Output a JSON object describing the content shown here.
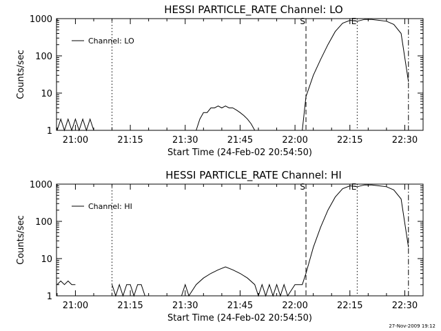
{
  "footer": {
    "timestamp": "27-Nov-2009 19:12"
  },
  "chart_data": [
    {
      "type": "line",
      "title": "HESSI PARTICLE_RATE Channel: LO",
      "xlabel": "Start Time (24-Feb-02 20:54:50)",
      "ylabel": "Counts/sec",
      "x_unit": "minutes of 24-Feb-02",
      "xlim": [
        "20:54:50",
        "22:35:00"
      ],
      "ylim": [
        1,
        1000
      ],
      "y_scale": "log",
      "x_ticks": [
        "21:00",
        "21:15",
        "21:30",
        "21:45",
        "22:00",
        "22:15",
        "22:30"
      ],
      "y_ticks": [
        "1",
        "10",
        "100",
        "1000"
      ],
      "legend": {
        "entries": [
          "Channel: LO"
        ],
        "placement": "top-left"
      },
      "markers": [
        {
          "time": "21:10",
          "style": "dotted",
          "label": ""
        },
        {
          "time": "22:03",
          "style": "dashed",
          "label": "S"
        },
        {
          "time": "22:17",
          "style": "dotted",
          "label": "E"
        },
        {
          "time": "22:31",
          "style": "dashdot",
          "label": ""
        }
      ],
      "series": [
        {
          "values": [
            [
              "20:55",
              1
            ],
            [
              "20:56",
              2
            ],
            [
              "20:57",
              1
            ],
            [
              "20:58",
              2
            ],
            [
              "20:59",
              1
            ],
            [
              "21:00",
              2
            ],
            [
              "21:01",
              1
            ],
            [
              "21:02",
              2
            ],
            [
              "21:03",
              1
            ],
            [
              "21:04",
              2
            ],
            [
              "21:05",
              1
            ],
            [
              "21:33",
              1
            ],
            [
              "21:34",
              2
            ],
            [
              "21:35",
              3
            ],
            [
              "21:36",
              3
            ],
            [
              "21:37",
              4
            ],
            [
              "21:38",
              4
            ],
            [
              "21:39",
              4.5
            ],
            [
              "21:40",
              4
            ],
            [
              "21:41",
              4.5
            ],
            [
              "21:42",
              4
            ],
            [
              "21:43",
              4
            ],
            [
              "21:44",
              3.5
            ],
            [
              "21:45",
              3
            ],
            [
              "21:46",
              2.5
            ],
            [
              "21:47",
              2
            ],
            [
              "21:48",
              1.5
            ],
            [
              "21:49",
              1
            ],
            [
              "22:02",
              1
            ],
            [
              "22:03",
              8
            ],
            [
              "22:05",
              30
            ],
            [
              "22:07",
              80
            ],
            [
              "22:09",
              200
            ],
            [
              "22:11",
              450
            ],
            [
              "22:13",
              750
            ],
            [
              "22:15",
              900
            ],
            [
              "22:17",
              850
            ],
            [
              "22:19",
              950
            ],
            [
              "22:21",
              950
            ],
            [
              "22:23",
              900
            ],
            [
              "22:25",
              850
            ],
            [
              "22:27",
              700
            ],
            [
              "22:29",
              400
            ],
            [
              "22:31",
              20
            ]
          ]
        }
      ]
    },
    {
      "type": "line",
      "title": "HESSI PARTICLE_RATE Channel: HI",
      "xlabel": "Start Time (24-Feb-02 20:54:50)",
      "ylabel": "Counts/sec",
      "x_unit": "minutes of 24-Feb-02",
      "xlim": [
        "20:54:50",
        "22:35:00"
      ],
      "ylim": [
        1,
        1000
      ],
      "y_scale": "log",
      "x_ticks": [
        "21:00",
        "21:15",
        "21:30",
        "21:45",
        "22:00",
        "22:15",
        "22:30"
      ],
      "y_ticks": [
        "1",
        "10",
        "100",
        "1000"
      ],
      "legend": {
        "entries": [
          "Channel: HI"
        ],
        "placement": "top-left"
      },
      "markers": [
        {
          "time": "21:10",
          "style": "dotted",
          "label": ""
        },
        {
          "time": "22:03",
          "style": "dashed",
          "label": "S"
        },
        {
          "time": "22:17",
          "style": "dotted",
          "label": "E"
        },
        {
          "time": "22:31",
          "style": "dashdot",
          "label": ""
        }
      ],
      "series": [
        {
          "values": [
            [
              "20:55",
              2
            ],
            [
              "20:56",
              2.5
            ],
            [
              "20:57",
              2
            ],
            [
              "20:58",
              2.5
            ],
            [
              "20:59",
              2
            ],
            [
              "21:00",
              2
            ],
            [
              "21:10",
              2
            ],
            [
              "21:11",
              1
            ],
            [
              "21:12",
              2
            ],
            [
              "21:13",
              1
            ],
            [
              "21:14",
              2
            ],
            [
              "21:15",
              2
            ],
            [
              "21:16",
              1
            ],
            [
              "21:17",
              2
            ],
            [
              "21:18",
              2
            ],
            [
              "21:19",
              1
            ],
            [
              "21:20",
              1
            ],
            [
              "21:29",
              1
            ],
            [
              "21:30",
              2
            ],
            [
              "21:31",
              1
            ],
            [
              "21:33",
              2
            ],
            [
              "21:35",
              3
            ],
            [
              "21:37",
              4
            ],
            [
              "21:39",
              5
            ],
            [
              "21:41",
              6
            ],
            [
              "21:43",
              5
            ],
            [
              "21:45",
              4
            ],
            [
              "21:47",
              3
            ],
            [
              "21:49",
              2
            ],
            [
              "21:50",
              1
            ],
            [
              "21:51",
              2
            ],
            [
              "21:52",
              1
            ],
            [
              "21:53",
              2
            ],
            [
              "21:54",
              1
            ],
            [
              "21:55",
              2
            ],
            [
              "21:56",
              1
            ],
            [
              "21:57",
              2
            ],
            [
              "21:58",
              1
            ],
            [
              "22:00",
              2
            ],
            [
              "22:02",
              2
            ],
            [
              "22:03",
              4
            ],
            [
              "22:05",
              20
            ],
            [
              "22:07",
              70
            ],
            [
              "22:09",
              200
            ],
            [
              "22:11",
              450
            ],
            [
              "22:13",
              750
            ],
            [
              "22:15",
              900
            ],
            [
              "22:17",
              850
            ],
            [
              "22:19",
              950
            ],
            [
              "22:21",
              950
            ],
            [
              "22:23",
              900
            ],
            [
              "22:25",
              850
            ],
            [
              "22:27",
              700
            ],
            [
              "22:29",
              400
            ],
            [
              "22:31",
              20
            ]
          ]
        }
      ]
    }
  ]
}
